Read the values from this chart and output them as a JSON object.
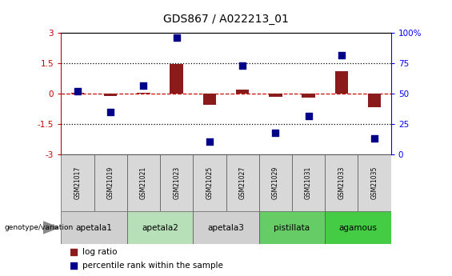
{
  "title": "GDS867 / A022213_01",
  "samples": [
    "GSM21017",
    "GSM21019",
    "GSM21021",
    "GSM21023",
    "GSM21025",
    "GSM21027",
    "GSM21029",
    "GSM21031",
    "GSM21033",
    "GSM21035"
  ],
  "log_ratio": [
    0.05,
    -0.1,
    0.05,
    1.47,
    -0.55,
    0.2,
    -0.15,
    -0.2,
    1.1,
    -0.65
  ],
  "percentile_rank": [
    52,
    35,
    57,
    96,
    11,
    73,
    18,
    32,
    82,
    13
  ],
  "ylim_left": [
    -3,
    3
  ],
  "ylim_right": [
    0,
    100
  ],
  "bar_color": "#8B1A1A",
  "dot_color": "#00008B",
  "dashed_line_color": "#CC0000",
  "groups": [
    {
      "label": "apetala1",
      "start": 0,
      "end": 2,
      "color": "#d0d0d0"
    },
    {
      "label": "apetala2",
      "start": 2,
      "end": 4,
      "color": "#b8e0b8"
    },
    {
      "label": "apetala3",
      "start": 4,
      "end": 6,
      "color": "#d0d0d0"
    },
    {
      "label": "pistillata",
      "start": 6,
      "end": 8,
      "color": "#66cc66"
    },
    {
      "label": "agamous",
      "start": 8,
      "end": 10,
      "color": "#44cc44"
    }
  ],
  "legend_items": [
    {
      "label": "log ratio",
      "color": "#8B1A1A"
    },
    {
      "label": "percentile rank within the sample",
      "color": "#00008B"
    }
  ],
  "genotype_label": "genotype/variation",
  "left_yticks": [
    -3,
    -1.5,
    0,
    1.5,
    3
  ],
  "right_yticks": [
    0,
    25,
    50,
    75,
    100
  ],
  "left_yticklabels": [
    "-3",
    "-1.5",
    "0",
    "1.5",
    "3"
  ],
  "right_yticklabels": [
    "0",
    "25",
    "50",
    "75",
    "100%"
  ]
}
